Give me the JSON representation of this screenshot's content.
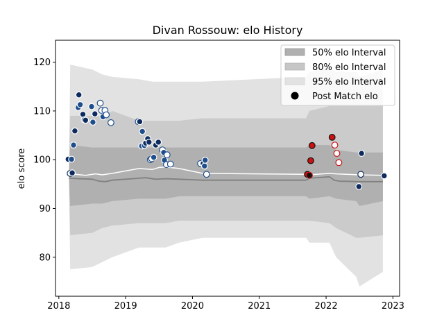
{
  "chart_data": {
    "type": "scatter",
    "title": "Divan Rossouw: elo History",
    "xlabel": "",
    "ylabel": "elo score",
    "xlim": [
      2017.95,
      2023.1
    ],
    "ylim": [
      72,
      124.5
    ],
    "x_ticks": [
      2018,
      2019,
      2020,
      2021,
      2022,
      2023
    ],
    "x_tick_labels": [
      "2018",
      "2019",
      "2020",
      "2021",
      "2022",
      "2023"
    ],
    "y_ticks": [
      80,
      90,
      100,
      110,
      120
    ],
    "y_tick_labels": [
      "80",
      "90",
      "100",
      "110",
      "120"
    ],
    "grid": false,
    "legend_position": "top-right",
    "legend": [
      {
        "label": "50% elo Interval",
        "kind": "patch",
        "color": "#a6a6a6"
      },
      {
        "label": "80% elo Interval",
        "kind": "patch",
        "color": "#c6c6c6"
      },
      {
        "label": "95% elo Interval",
        "kind": "patch",
        "color": "#e2e2e2"
      },
      {
        "label": "Post Match elo",
        "kind": "marker",
        "color": "#000000"
      }
    ],
    "colors": {
      "band95": "#e2e2e2",
      "band80": "#cbcbcb",
      "band50": "#b0b0b0",
      "median_line": "#808080",
      "mean_line": "#ffffff",
      "navy": "#0d2b5e",
      "blue": "#1f4e8c",
      "red": "#cc1111",
      "black": "#111111"
    },
    "bands": {
      "x": [
        2018.15,
        2018.17,
        2018.5,
        2018.65,
        2018.8,
        2019.2,
        2019.4,
        2019.6,
        2019.8,
        2020.15,
        2021.7,
        2021.75,
        2022.05,
        2022.15,
        2022.45,
        2022.5,
        2022.85
      ],
      "q025": [
        97,
        77.5,
        78,
        79,
        80,
        82,
        82,
        82,
        83,
        84,
        84,
        83,
        83,
        80,
        76,
        74,
        77
      ],
      "q10": [
        97,
        84.5,
        85,
        86,
        86.5,
        87,
        87,
        87,
        87.5,
        87.5,
        87.5,
        87.5,
        87,
        86,
        84,
        84,
        84.5
      ],
      "q25": [
        97,
        90.5,
        91,
        91,
        91.5,
        92,
        92,
        92,
        92.5,
        92.5,
        92.5,
        92,
        92.5,
        92,
        91.5,
        90.5,
        91.5
      ],
      "q75": [
        97,
        103,
        102.5,
        102.5,
        102.5,
        102.5,
        102.5,
        102.5,
        102.5,
        102.5,
        102.5,
        103,
        103,
        102,
        101.5,
        101.5,
        101.5
      ],
      "q90": [
        97,
        109,
        109,
        109,
        110,
        108,
        108,
        108,
        108,
        108.5,
        108.5,
        110,
        111,
        111,
        111,
        111,
        111
      ],
      "q975": [
        97,
        119.5,
        118.5,
        117.5,
        117,
        116.5,
        116,
        116,
        116,
        116,
        117,
        118,
        119,
        118,
        118,
        117,
        118.5
      ]
    },
    "median_line": {
      "x": [
        2018.15,
        2018.3,
        2018.5,
        2018.6,
        2018.7,
        2018.8,
        2019.0,
        2019.2,
        2019.3,
        2019.45,
        2019.6,
        2019.8,
        2020.15,
        2021.7,
        2021.75,
        2022.05,
        2022.12,
        2022.2,
        2022.5,
        2022.85
      ],
      "y": [
        96.2,
        96.1,
        96,
        95.6,
        95.5,
        95.8,
        96,
        96.2,
        96.3,
        96,
        96.1,
        96,
        95.8,
        95.8,
        96.2,
        96.5,
        95.8,
        95.6,
        95.5,
        95.5
      ]
    },
    "mean_line": {
      "x": [
        2018.15,
        2018.25,
        2018.4,
        2018.55,
        2018.65,
        2018.8,
        2019.2,
        2019.4,
        2019.5,
        2019.6,
        2019.8,
        2020.15,
        2021.7,
        2021.75,
        2022.05,
        2022.15,
        2022.5,
        2022.85
      ],
      "y": [
        96.8,
        97,
        96.8,
        97.1,
        96.9,
        97.2,
        98.2,
        98,
        98.4,
        98.5,
        98.2,
        97.2,
        97,
        96.9,
        97.2,
        97.1,
        96.9,
        96.8
      ],
      "width": 1.5
    },
    "points": [
      {
        "x": 2018.14,
        "y": 100.1,
        "fill": "navy",
        "edge": "white"
      },
      {
        "x": 2018.17,
        "y": 97.2,
        "fill": "white",
        "edge": "navy"
      },
      {
        "x": 2018.19,
        "y": 100.1,
        "fill": "blue",
        "edge": "white"
      },
      {
        "x": 2018.2,
        "y": 97.3,
        "fill": "navy",
        "edge": "white"
      },
      {
        "x": 2018.22,
        "y": 103.0,
        "fill": "blue",
        "edge": "white"
      },
      {
        "x": 2018.24,
        "y": 105.9,
        "fill": "navy",
        "edge": "white"
      },
      {
        "x": 2018.29,
        "y": 110.7,
        "fill": "blue",
        "edge": "white"
      },
      {
        "x": 2018.3,
        "y": 113.3,
        "fill": "navy",
        "edge": "white"
      },
      {
        "x": 2018.32,
        "y": 111.3,
        "fill": "blue",
        "edge": "white"
      },
      {
        "x": 2018.36,
        "y": 109.3,
        "fill": "navy",
        "edge": "white"
      },
      {
        "x": 2018.38,
        "y": 108.2,
        "fill": "blue",
        "edge": "white"
      },
      {
        "x": 2018.4,
        "y": 108.1,
        "fill": "navy",
        "edge": "white"
      },
      {
        "x": 2018.49,
        "y": 110.9,
        "fill": "blue",
        "edge": "white"
      },
      {
        "x": 2018.51,
        "y": 107.7,
        "fill": "blue",
        "edge": "white"
      },
      {
        "x": 2018.54,
        "y": 109.4,
        "fill": "navy",
        "edge": "white"
      },
      {
        "x": 2018.62,
        "y": 111.6,
        "fill": "white",
        "edge": "blue"
      },
      {
        "x": 2018.64,
        "y": 110.1,
        "fill": "white",
        "edge": "blue"
      },
      {
        "x": 2018.66,
        "y": 108.8,
        "fill": "blue",
        "edge": "white"
      },
      {
        "x": 2018.69,
        "y": 110.1,
        "fill": "white",
        "edge": "blue"
      },
      {
        "x": 2018.71,
        "y": 109.2,
        "fill": "white",
        "edge": "blue"
      },
      {
        "x": 2018.78,
        "y": 107.6,
        "fill": "white",
        "edge": "blue"
      },
      {
        "x": 2019.19,
        "y": 107.8,
        "fill": "white",
        "edge": "blue"
      },
      {
        "x": 2019.21,
        "y": 107.8,
        "fill": "navy",
        "edge": "white"
      },
      {
        "x": 2019.25,
        "y": 105.8,
        "fill": "blue",
        "edge": "white"
      },
      {
        "x": 2019.24,
        "y": 102.8,
        "fill": "blue",
        "edge": "white"
      },
      {
        "x": 2019.28,
        "y": 102.9,
        "fill": "blue",
        "edge": "white"
      },
      {
        "x": 2019.3,
        "y": 103.4,
        "fill": "navy",
        "edge": "white"
      },
      {
        "x": 2019.33,
        "y": 104.3,
        "fill": "navy",
        "edge": "white"
      },
      {
        "x": 2019.35,
        "y": 103.6,
        "fill": "navy",
        "edge": "white"
      },
      {
        "x": 2019.37,
        "y": 100.0,
        "fill": "white",
        "edge": "blue"
      },
      {
        "x": 2019.39,
        "y": 100.2,
        "fill": "white",
        "edge": "blue"
      },
      {
        "x": 2019.42,
        "y": 100.5,
        "fill": "blue",
        "edge": "white"
      },
      {
        "x": 2019.45,
        "y": 103.0,
        "fill": "navy",
        "edge": "white"
      },
      {
        "x": 2019.49,
        "y": 103.6,
        "fill": "navy",
        "edge": "white"
      },
      {
        "x": 2019.55,
        "y": 102.0,
        "fill": "white",
        "edge": "blue"
      },
      {
        "x": 2019.57,
        "y": 101.5,
        "fill": "blue",
        "edge": "white"
      },
      {
        "x": 2019.58,
        "y": 99.9,
        "fill": "blue",
        "edge": "white"
      },
      {
        "x": 2019.61,
        "y": 99.0,
        "fill": "white",
        "edge": "blue"
      },
      {
        "x": 2019.62,
        "y": 101.0,
        "fill": "white",
        "edge": "blue"
      },
      {
        "x": 2019.67,
        "y": 99.1,
        "fill": "white",
        "edge": "blue"
      },
      {
        "x": 2020.12,
        "y": 99.2,
        "fill": "white",
        "edge": "blue"
      },
      {
        "x": 2020.16,
        "y": 99.2,
        "fill": "navy",
        "edge": "white"
      },
      {
        "x": 2020.18,
        "y": 98.7,
        "fill": "blue",
        "edge": "white"
      },
      {
        "x": 2020.19,
        "y": 99.9,
        "fill": "blue",
        "edge": "white"
      },
      {
        "x": 2020.21,
        "y": 97.0,
        "fill": "white",
        "edge": "blue"
      },
      {
        "x": 2021.72,
        "y": 97.0,
        "fill": "red",
        "edge": "black"
      },
      {
        "x": 2021.75,
        "y": 96.8,
        "fill": "black",
        "edge": "red"
      },
      {
        "x": 2021.77,
        "y": 99.8,
        "fill": "red",
        "edge": "black"
      },
      {
        "x": 2021.79,
        "y": 102.9,
        "fill": "red",
        "edge": "black"
      },
      {
        "x": 2022.09,
        "y": 104.6,
        "fill": "red",
        "edge": "black"
      },
      {
        "x": 2022.13,
        "y": 103.0,
        "fill": "white",
        "edge": "red"
      },
      {
        "x": 2022.16,
        "y": 101.3,
        "fill": "white",
        "edge": "red"
      },
      {
        "x": 2022.19,
        "y": 99.4,
        "fill": "white",
        "edge": "red"
      },
      {
        "x": 2022.49,
        "y": 94.5,
        "fill": "navy",
        "edge": "white"
      },
      {
        "x": 2022.52,
        "y": 97.0,
        "fill": "white",
        "edge": "navy"
      },
      {
        "x": 2022.53,
        "y": 101.3,
        "fill": "navy",
        "edge": "white"
      },
      {
        "x": 2022.87,
        "y": 96.7,
        "fill": "navy",
        "edge": "white"
      }
    ]
  }
}
